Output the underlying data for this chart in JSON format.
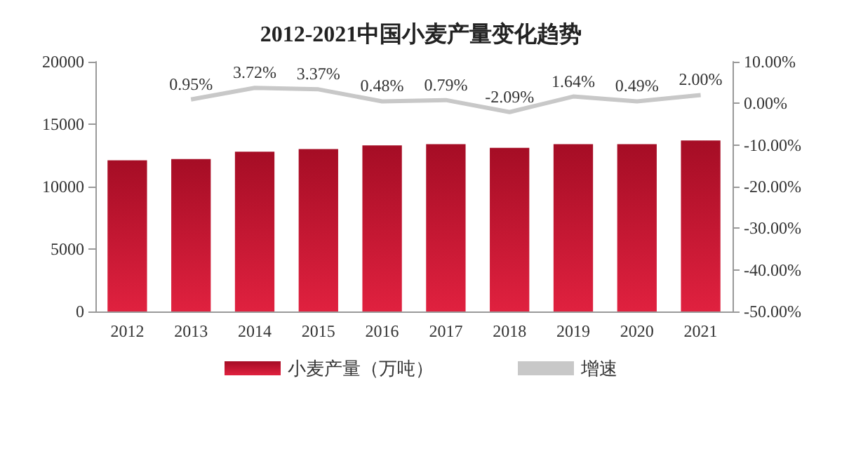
{
  "chart_data": {
    "type": "bar",
    "title": "2012-2021中国小麦产量变化趋势",
    "categories": [
      "2012",
      "2013",
      "2014",
      "2015",
      "2016",
      "2017",
      "2018",
      "2019",
      "2020",
      "2021"
    ],
    "series": [
      {
        "name": "小麦产量（万吨）",
        "color": "#a50d25",
        "values": [
          12100,
          12200,
          12800,
          13000,
          13300,
          13400,
          13100,
          13400,
          13400,
          13700
        ]
      },
      {
        "name": "增速",
        "type": "line",
        "axis": "y2",
        "color": "#c8c8c8",
        "marker": "none",
        "values": [
          null,
          0.95,
          3.72,
          3.37,
          0.48,
          0.79,
          -2.09,
          1.64,
          0.49,
          2.0
        ],
        "value_labels": [
          null,
          "0.95%",
          "3.72%",
          "3.37%",
          "0.48%",
          "0.79%",
          "-2.09%",
          "1.64%",
          "0.49%",
          "2.00%"
        ]
      }
    ],
    "ylim": [
      0,
      20000
    ],
    "yticks": [
      0,
      5000,
      10000,
      15000,
      20000
    ],
    "y2lim": [
      -50,
      10
    ],
    "y2ticks": [
      {
        "value": 10,
        "label": "10.00%"
      },
      {
        "value": 0,
        "label": "0.00%"
      },
      {
        "value": -10,
        "label": "-10.00%"
      },
      {
        "value": -20,
        "label": "-20.00%"
      },
      {
        "value": -30,
        "label": "-30.00%"
      },
      {
        "value": -40,
        "label": "-40.00%"
      },
      {
        "value": -50,
        "label": "-50.00%"
      }
    ],
    "grid": false,
    "legend": "bottom"
  }
}
